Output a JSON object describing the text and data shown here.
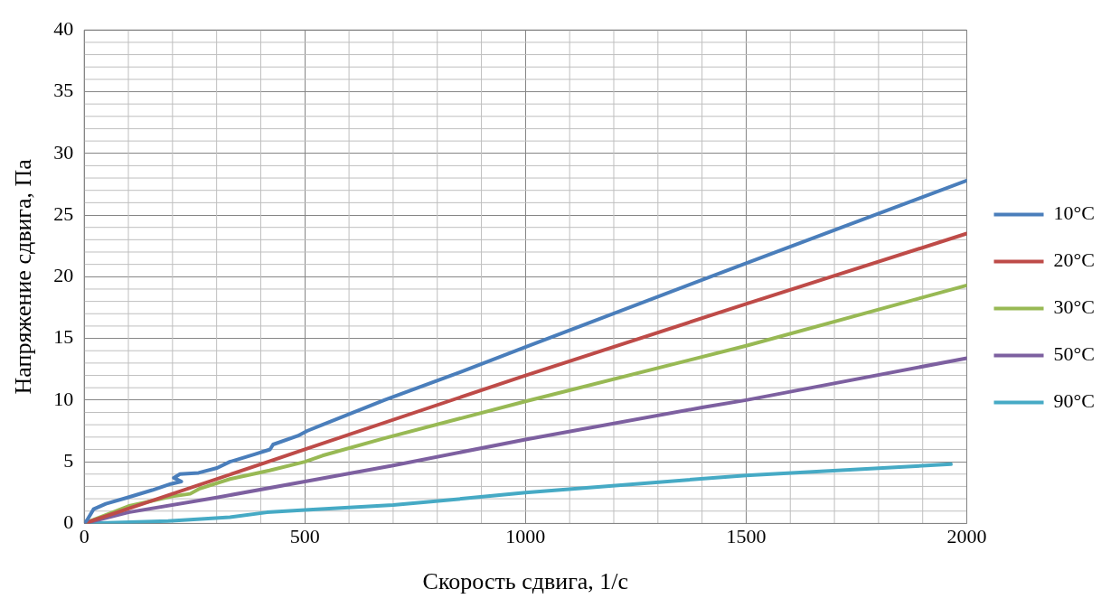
{
  "chart_data": {
    "type": "line",
    "xlabel": "Скорость сдвига, 1/с",
    "ylabel": "Напряжение сдвига, Па",
    "xlim": [
      0,
      2000
    ],
    "xticks": [
      0,
      500,
      1000,
      1500,
      2000
    ],
    "ylim": [
      0,
      40
    ],
    "yticks": [
      0,
      5,
      10,
      15,
      20,
      25,
      30,
      35,
      40
    ],
    "grid": true,
    "legend": "right",
    "marker": "none",
    "line_style": "solid",
    "series": [
      {
        "name": "10°C",
        "color": "#4a7ebb",
        "x": [
          0,
          7,
          21,
          49,
          98,
          154,
          196,
          220,
          203,
          217,
          259,
          301,
          330,
          386,
          421,
          428,
          484,
          505,
          540,
          680,
          855,
          1000,
          1500,
          2000
        ],
        "values": [
          0,
          0.3,
          1.15,
          1.6,
          2.1,
          2.7,
          3.2,
          3.4,
          3.7,
          4.0,
          4.1,
          4.5,
          5.0,
          5.6,
          6.0,
          6.4,
          7.1,
          7.5,
          8.0,
          10.0,
          12.3,
          14.3,
          21.1,
          27.8
        ]
      },
      {
        "name": "20°C",
        "color": "#be4b48",
        "x": [
          0,
          500,
          1000,
          1500,
          2000
        ],
        "values": [
          0,
          6.0,
          12.0,
          17.8,
          23.5
        ]
      },
      {
        "name": "30°C",
        "color": "#98b954",
        "x": [
          0,
          100,
          200,
          240,
          260,
          330,
          420,
          500,
          540,
          680,
          1000,
          1500,
          2000
        ],
        "values": [
          0,
          1.4,
          2.2,
          2.4,
          2.8,
          3.6,
          4.3,
          5.0,
          5.5,
          6.9,
          9.9,
          14.4,
          19.3
        ]
      },
      {
        "name": "50°C",
        "color": "#7d60a0",
        "x": [
          0,
          100,
          300,
          500,
          700,
          1000,
          1400,
          1500,
          2000
        ],
        "values": [
          0,
          0.9,
          2.1,
          3.4,
          4.7,
          6.8,
          9.4,
          10.0,
          13.4
        ]
      },
      {
        "name": "90°C",
        "color": "#46aac5",
        "x": [
          0,
          190,
          330,
          414,
          500,
          700,
          855,
          1000,
          1500,
          1964
        ],
        "values": [
          0,
          0.2,
          0.5,
          0.9,
          1.1,
          1.5,
          2.0,
          2.5,
          3.9,
          4.8
        ]
      }
    ]
  }
}
